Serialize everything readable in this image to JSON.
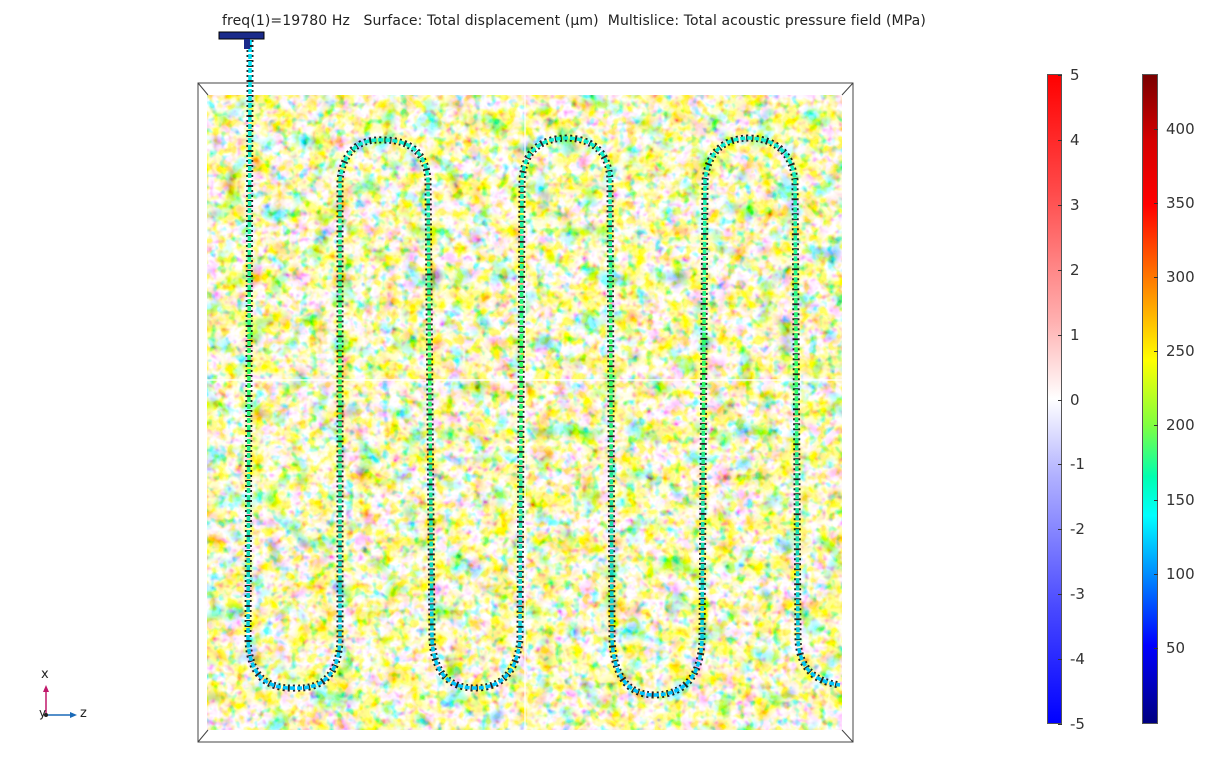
{
  "plot": {
    "title": "freq(1)=19780 Hz   Surface: Total displacement (µm)  Multislice: Total acoustic pressure field (MPa)"
  },
  "colorbar_displacement": {
    "ticks": [
      "5",
      "4",
      "3",
      "2",
      "1",
      "0",
      "-1",
      "-2",
      "-3",
      "-4",
      "-5"
    ],
    "colormap": [
      "#0000ff",
      "#ffffff",
      "#ff0000"
    ]
  },
  "colorbar_pressure": {
    "ticks": [
      "400",
      "350",
      "300",
      "250",
      "200",
      "150",
      "100",
      "50"
    ],
    "colormap": [
      "#000080",
      "#0000ff",
      "#00ffff",
      "#ffff00",
      "#ff0000",
      "#7a0000"
    ]
  },
  "axes_triad": {
    "x": "x",
    "y": "y",
    "z": "z"
  }
}
